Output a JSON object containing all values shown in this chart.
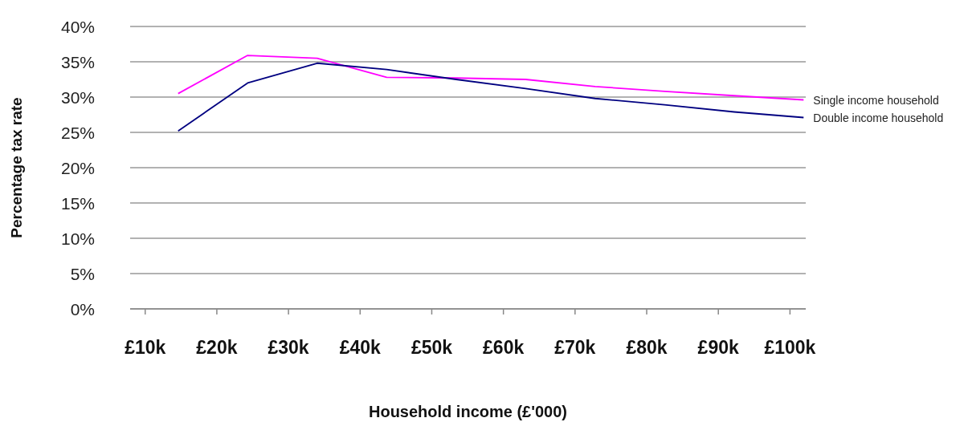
{
  "chart_data": {
    "type": "line",
    "xlabel": "Household income (£'000)",
    "ylabel": "Percentage tax rate",
    "x": [
      14.6,
      24.3,
      34.0,
      43.7,
      53.4,
      63.1,
      72.8,
      82.5,
      92.2,
      101.9
    ],
    "series": [
      {
        "name": "Single income household",
        "color": "#ff00ff",
        "values": [
          30.5,
          35.9,
          35.5,
          32.8,
          32.7,
          32.5,
          31.5,
          30.8,
          30.2,
          29.6
        ]
      },
      {
        "name": "Double income household",
        "color": "#000080",
        "values": [
          25.2,
          32.0,
          34.8,
          33.9,
          32.5,
          31.2,
          29.8,
          28.9,
          27.9,
          27.1
        ]
      }
    ],
    "xlim": [
      7.9,
      102.2
    ],
    "xticks": [
      {
        "value": 10,
        "label": "£10k"
      },
      {
        "value": 20,
        "label": "£20k"
      },
      {
        "value": 30,
        "label": "£30k"
      },
      {
        "value": 40,
        "label": "£40k"
      },
      {
        "value": 50,
        "label": "£50k"
      },
      {
        "value": 60,
        "label": "£60k"
      },
      {
        "value": 70,
        "label": "£70k"
      },
      {
        "value": 80,
        "label": "£80k"
      },
      {
        "value": 90,
        "label": "£90k"
      },
      {
        "value": 100,
        "label": "£100k"
      }
    ],
    "ylim": [
      0,
      40
    ],
    "yticks": [
      {
        "value": 0,
        "label": "0%"
      },
      {
        "value": 5,
        "label": "5%"
      },
      {
        "value": 10,
        "label": "10%"
      },
      {
        "value": 15,
        "label": "15%"
      },
      {
        "value": 20,
        "label": "20%"
      },
      {
        "value": 25,
        "label": "25%"
      },
      {
        "value": 30,
        "label": "30%"
      },
      {
        "value": 35,
        "label": "35%"
      },
      {
        "value": 40,
        "label": "40%"
      }
    ],
    "grid": "y",
    "marker": "none",
    "line_style": "solid"
  }
}
